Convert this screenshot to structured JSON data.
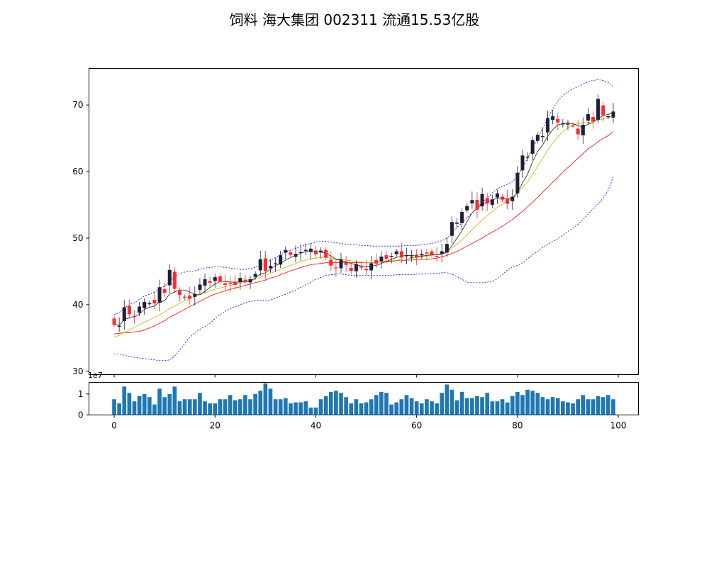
{
  "chart_data": {
    "type": "candlestick",
    "title": "饲料 海大集团 002311 流通15.53亿股",
    "xlim": [
      -5,
      104
    ],
    "price_panel": {
      "ylim": [
        29.5,
        75.5
      ],
      "yticks": [
        30,
        40,
        50,
        60,
        70
      ],
      "colors": {
        "up": "#1f1f3a",
        "down": "#ff2a2a",
        "ma_short": "#000000",
        "ma_mid": "#c8b400",
        "ma_long": "#ff0000",
        "band": "#0000ff"
      },
      "close": [
        37.0,
        36.8,
        39.6,
        38.6,
        38.3,
        39.7,
        40.4,
        40.2,
        40.2,
        42.6,
        41.8,
        45.2,
        42.4,
        41.5,
        41.1,
        40.9,
        41.6,
        43.0,
        43.8,
        43.3,
        44.1,
        43.5,
        43.0,
        43.2,
        43.0,
        44.0,
        43.6,
        43.8,
        44.6,
        46.8,
        45.1,
        45.8,
        46.2,
        47.4,
        48.2,
        47.5,
        47.6,
        47.9,
        48.2,
        48.4,
        47.6,
        48.1,
        47.1,
        45.9,
        45.5,
        46.8,
        46.0,
        45.1,
        46.1,
        45.6,
        45.2,
        46.2,
        46.2,
        47.2,
        46.9,
        47.3,
        48.0,
        47.1,
        47.4,
        47.2,
        47.1,
        47.6,
        47.7,
        47.6,
        47.3,
        48.0,
        49.1,
        52.4,
        52.3,
        53.9,
        54.8,
        55.7,
        54.3,
        56.6,
        55.2,
        55.8,
        56.7,
        55.8,
        55.2,
        56.2,
        59.8,
        62.4,
        62.2,
        64.7,
        65.5,
        65.3,
        68.0,
        68.3,
        67.4,
        67.2,
        67.2,
        66.9,
        65.6,
        67.0,
        68.6,
        67.6,
        70.9,
        68.5,
        68.3,
        69.0
      ],
      "ma_short": [
        37.0,
        36.9,
        37.8,
        38.0,
        38.1,
        38.6,
        39.3,
        39.6,
        39.8,
        40.4,
        40.6,
        41.6,
        41.9,
        42.2,
        42.2,
        41.9,
        41.5,
        41.5,
        42.0,
        42.6,
        43.1,
        43.5,
        43.5,
        43.4,
        43.4,
        43.4,
        43.5,
        43.6,
        44.0,
        44.6,
        44.8,
        45.3,
        45.9,
        46.2,
        46.7,
        47.1,
        47.4,
        47.7,
        48.0,
        48.0,
        47.9,
        47.9,
        47.7,
        47.3,
        46.8,
        46.7,
        46.4,
        46.2,
        46.0,
        45.8,
        45.7,
        45.8,
        45.9,
        46.2,
        46.5,
        46.8,
        47.1,
        47.3,
        47.4,
        47.4,
        47.3,
        47.3,
        47.4,
        47.5,
        47.5,
        47.6,
        47.9,
        48.9,
        50.0,
        51.1,
        52.5,
        53.8,
        54.5,
        55.1,
        55.4,
        55.7,
        56.0,
        56.0,
        55.9,
        55.9,
        56.8,
        58.3,
        59.6,
        61.5,
        63.0,
        64.0,
        65.3,
        66.3,
        67.0,
        67.2,
        67.3,
        67.2,
        66.9,
        66.7,
        67.1,
        67.4,
        68.0,
        68.4,
        68.6,
        68.8
      ],
      "ma_mid": [
        35.1,
        35.4,
        35.8,
        36.2,
        36.6,
        37.0,
        37.4,
        37.7,
        38.1,
        38.5,
        38.9,
        39.4,
        39.8,
        40.2,
        40.6,
        40.9,
        41.2,
        41.5,
        41.8,
        42.1,
        42.3,
        42.5,
        42.7,
        42.9,
        43.1,
        43.2,
        43.4,
        43.6,
        43.8,
        44.1,
        44.4,
        44.7,
        45.0,
        45.3,
        45.6,
        45.9,
        46.2,
        46.5,
        46.7,
        46.9,
        47.0,
        47.1,
        47.1,
        47.0,
        46.9,
        46.8,
        46.7,
        46.6,
        46.5,
        46.4,
        46.3,
        46.3,
        46.3,
        46.4,
        46.5,
        46.6,
        46.7,
        46.8,
        46.9,
        47.0,
        47.1,
        47.2,
        47.3,
        47.4,
        47.5,
        47.7,
        48.0,
        48.5,
        49.1,
        49.8,
        50.5,
        51.3,
        52.0,
        52.7,
        53.4,
        54.0,
        54.6,
        55.1,
        55.6,
        56.1,
        56.8,
        57.6,
        58.5,
        59.6,
        60.8,
        62.0,
        63.2,
        64.3,
        65.2,
        66.0,
        66.6,
        67.0,
        67.2,
        67.3,
        67.4,
        67.5,
        67.7,
        67.9,
        68.1,
        68.3
      ],
      "ma_long": [
        35.6,
        35.7,
        35.8,
        35.8,
        35.9,
        36.0,
        36.2,
        36.5,
        36.8,
        37.2,
        37.6,
        38.1,
        38.5,
        38.9,
        39.3,
        39.7,
        40.1,
        40.5,
        40.9,
        41.3,
        41.6,
        41.8,
        42.1,
        42.3,
        42.5,
        42.7,
        42.9,
        43.1,
        43.3,
        43.5,
        43.7,
        44.0,
        44.2,
        44.5,
        44.8,
        45.1,
        45.3,
        45.6,
        45.8,
        46.0,
        46.1,
        46.2,
        46.3,
        46.3,
        46.3,
        46.3,
        46.3,
        46.3,
        46.3,
        46.3,
        46.3,
        46.3,
        46.3,
        46.4,
        46.4,
        46.5,
        46.6,
        46.6,
        46.7,
        46.7,
        46.8,
        46.8,
        46.8,
        46.9,
        47.0,
        47.2,
        47.4,
        47.7,
        48.0,
        48.4,
        48.8,
        49.2,
        49.6,
        50.0,
        50.5,
        50.9,
        51.3,
        51.8,
        52.3,
        52.8,
        53.4,
        54.0,
        54.7,
        55.4,
        56.1,
        56.9,
        57.6,
        58.4,
        59.1,
        59.9,
        60.6,
        61.3,
        62.0,
        62.7,
        63.4,
        63.9,
        64.5,
        65.0,
        65.4,
        66.0
      ],
      "band_upper": [
        38.5,
        38.8,
        39.5,
        40.0,
        40.3,
        40.8,
        41.3,
        41.6,
        41.9,
        42.4,
        42.8,
        43.5,
        44.2,
        44.7,
        44.9,
        45.0,
        45.1,
        45.3,
        45.5,
        45.6,
        45.7,
        45.7,
        45.6,
        45.5,
        45.4,
        45.3,
        45.3,
        45.4,
        45.6,
        46.0,
        46.3,
        46.7,
        47.1,
        47.5,
        47.9,
        48.2,
        48.5,
        48.7,
        49.0,
        49.2,
        49.4,
        49.5,
        49.5,
        49.4,
        49.3,
        49.2,
        49.1,
        49.1,
        49.0,
        48.9,
        48.9,
        48.8,
        48.8,
        48.8,
        48.8,
        48.8,
        48.8,
        48.8,
        48.9,
        48.9,
        48.9,
        49.0,
        49.1,
        49.2,
        49.4,
        49.6,
        50.0,
        50.8,
        51.6,
        52.3,
        53.1,
        53.8,
        54.6,
        55.4,
        56.0,
        56.8,
        57.4,
        57.8,
        58.1,
        58.5,
        59.3,
        60.6,
        62.0,
        63.5,
        65.0,
        66.5,
        68.0,
        69.4,
        70.6,
        71.4,
        72.0,
        72.4,
        72.8,
        73.1,
        73.5,
        73.7,
        73.8,
        73.7,
        73.4,
        72.8
      ],
      "band_lower": [
        32.6,
        32.6,
        32.4,
        32.2,
        32.1,
        32.0,
        31.9,
        31.8,
        31.7,
        31.6,
        31.6,
        31.7,
        32.3,
        33.2,
        34.2,
        35.1,
        35.8,
        36.3,
        36.7,
        37.2,
        37.9,
        38.5,
        39.0,
        39.4,
        39.7,
        40.0,
        40.3,
        40.5,
        40.6,
        40.6,
        40.6,
        40.7,
        41.0,
        41.3,
        41.6,
        41.9,
        42.2,
        42.6,
        43.0,
        43.4,
        43.8,
        44.1,
        44.4,
        44.5,
        44.6,
        44.6,
        44.5,
        44.4,
        44.4,
        44.4,
        44.4,
        44.4,
        44.4,
        44.4,
        44.4,
        44.4,
        44.5,
        44.5,
        44.5,
        44.5,
        44.6,
        44.6,
        44.6,
        44.7,
        44.7,
        44.8,
        44.8,
        44.6,
        44.2,
        43.8,
        43.4,
        43.3,
        43.3,
        43.3,
        43.4,
        43.5,
        43.9,
        44.5,
        45.2,
        45.7,
        45.9,
        46.3,
        46.9,
        47.5,
        48.0,
        48.6,
        49.1,
        49.5,
        49.9,
        50.4,
        51.0,
        51.5,
        52.1,
        52.8,
        53.6,
        54.4,
        55.1,
        56.0,
        57.2,
        59.2
      ]
    },
    "volume_panel": {
      "offset_label": "1e7",
      "ylim": [
        0,
        1.55
      ],
      "yticks": [
        "0",
        "1"
      ],
      "xticks": [
        "0",
        "20",
        "40",
        "60",
        "80",
        "100"
      ],
      "xtick_values": [
        0,
        20,
        40,
        60,
        80,
        100
      ],
      "bar_color": "#1f77b4",
      "values": [
        0.75,
        0.55,
        1.35,
        1.05,
        0.65,
        0.9,
        1.0,
        0.85,
        0.5,
        1.25,
        0.85,
        1.0,
        1.35,
        0.65,
        0.75,
        0.75,
        0.75,
        1.05,
        0.65,
        0.55,
        0.55,
        0.75,
        0.75,
        0.95,
        0.7,
        0.75,
        0.95,
        0.75,
        1.0,
        1.15,
        1.5,
        1.25,
        0.75,
        0.75,
        0.8,
        0.55,
        0.6,
        0.6,
        0.65,
        0.35,
        0.35,
        0.75,
        0.9,
        1.1,
        1.15,
        1.05,
        0.85,
        0.55,
        0.75,
        0.55,
        0.6,
        0.75,
        0.95,
        1.1,
        1.05,
        0.5,
        0.6,
        0.75,
        0.95,
        0.8,
        0.65,
        0.55,
        0.75,
        0.65,
        0.55,
        1.05,
        1.45,
        1.2,
        0.7,
        1.1,
        0.8,
        0.8,
        0.9,
        0.85,
        1.05,
        0.65,
        0.65,
        0.75,
        0.6,
        0.9,
        1.1,
        0.95,
        1.2,
        1.15,
        1.05,
        0.85,
        0.75,
        0.85,
        0.8,
        0.65,
        0.6,
        0.55,
        0.75,
        0.95,
        0.75,
        0.75,
        0.9,
        0.85,
        0.95,
        0.75
      ]
    }
  }
}
